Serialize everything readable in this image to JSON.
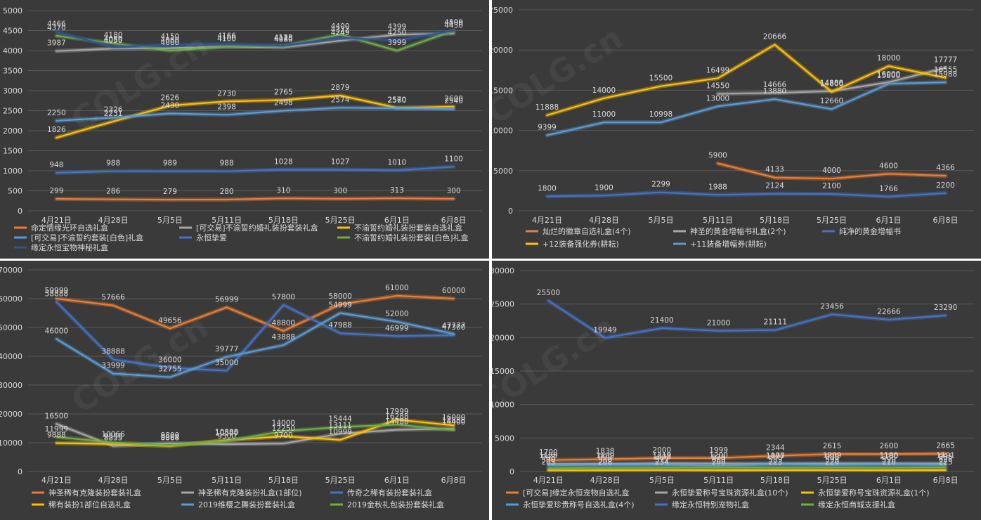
{
  "chart_data": [
    {
      "type": "line",
      "categories": [
        "4月21日",
        "4月28日",
        "5月5日",
        "5月11日",
        "5月18日",
        "5月25日",
        "6月1日",
        "6月8日"
      ],
      "ylim": [
        0,
        5000
      ],
      "yticks": [
        0,
        500,
        1000,
        1500,
        2000,
        2500,
        3000,
        3500,
        4000,
        4500,
        5000
      ],
      "grid": true,
      "legend_position": "bottom",
      "series": [
        {
          "name": "命定情缘光环自选礼盒",
          "color": "#ed7d31",
          "values": [
            299,
            286,
            279,
            280,
            310,
            300,
            313,
            300
          ]
        },
        {
          "name": "[可交易]不渝誓约婚礼装扮套装礼盒",
          "color": "#a5a5a5",
          "values": [
            3987,
            4050,
            4060,
            4100,
            4080,
            4249,
            4399,
            4430
          ]
        },
        {
          "name": "不渝誓约婚礼装扮套装自选礼盒",
          "color": "#ffc000",
          "values": [
            1826,
            2231,
            2626,
            2730,
            2765,
            2879,
            2570,
            2600
          ]
        },
        {
          "name": "[可交易]不渝誓约套装[白色]礼盒",
          "color": "#5b9bd5",
          "values": [
            2250,
            2326,
            2430,
            2398,
            2498,
            2574,
            2560,
            2540
          ]
        },
        {
          "name": "永恒挚爱",
          "color": "#4472c4",
          "values": [
            948,
            988,
            989,
            988,
            1028,
            1027,
            1010,
            1100
          ]
        },
        {
          "name": "不渝誓约婚礼装扮套装[白色]礼盒",
          "color": "#70ad47",
          "values": [
            4370,
            4180,
            4000,
            4100,
            4118,
            4400,
            3999,
            4498
          ]
        },
        {
          "name": "缘定永恒宝物神秘礼盒",
          "color": "#2f5597",
          "values": [
            4466,
            4089,
            4150,
            4166,
            4123,
            4322,
            4250,
            4500
          ]
        }
      ]
    },
    {
      "type": "line",
      "categories": [
        "4月21日",
        "4月28日",
        "5月5日",
        "5月11日",
        "5月18日",
        "5月25日",
        "6月1日",
        "6月8日"
      ],
      "ylim": [
        0,
        25000
      ],
      "yticks": [
        0,
        5000,
        10000,
        15000,
        20000,
        25000
      ],
      "grid": true,
      "legend_position": "bottom",
      "series": [
        {
          "name": "灿烂的徽章自选礼盒(4个)",
          "color": "#ed7d31",
          "values": [
            null,
            null,
            null,
            5900,
            4133,
            4000,
            4600,
            4366
          ]
        },
        {
          "name": "神圣的黄金增幅书礼盒(2个)",
          "color": "#a5a5a5",
          "values": [
            null,
            null,
            null,
            14550,
            14666,
            14888,
            16000,
            17777
          ]
        },
        {
          "name": "纯净的黄金增幅书",
          "color": "#4472c4",
          "values": [
            1800,
            1900,
            2299,
            1988,
            2124,
            2100,
            1766,
            2200
          ]
        },
        {
          "name": "+12装备强化券(耕耘)",
          "color": "#ffc000",
          "values": [
            11888,
            14000,
            15500,
            16499,
            20666,
            14800,
            18000,
            16555
          ]
        },
        {
          "name": "+11装备增幅券(耕耘)",
          "color": "#5b9bd5",
          "values": [
            9399,
            11000,
            10998,
            13000,
            13880,
            12660,
            15800,
            15988
          ]
        }
      ]
    },
    {
      "type": "line",
      "categories": [
        "4月21日",
        "4月28日",
        "5月5日",
        "5月11日",
        "5月18日",
        "5月25日",
        "6月1日",
        "6月8日"
      ],
      "ylim": [
        0,
        70000
      ],
      "yticks": [
        0,
        10000,
        20000,
        30000,
        40000,
        50000,
        60000,
        70000
      ],
      "grid": true,
      "legend_position": "bottom",
      "series": [
        {
          "name": "神圣稀有克隆装扮套装礼盒",
          "color": "#ed7d31",
          "values": [
            59999,
            57666,
            49656,
            56999,
            48800,
            58000,
            61000,
            60000
          ]
        },
        {
          "name": "神圣稀有克隆装扮礼盒(1部位)",
          "color": "#a5a5a5",
          "values": [
            16500,
            8855,
            9800,
            9500,
            9700,
            13111,
            14488,
            14888
          ]
        },
        {
          "name": "传奇之稀有装扮套装礼盒",
          "color": "#4472c4",
          "values": [
            58888,
            38888,
            36000,
            35000,
            57800,
            47988,
            46999,
            47300
          ]
        },
        {
          "name": "稀有装扮1部位自选礼盒",
          "color": "#ffc000",
          "values": [
            9888,
            9550,
            8888,
            10888,
            12250,
            10999,
            17999,
            16000
          ]
        },
        {
          "name": "2019维樱之舞装扮套装礼盒",
          "color": "#5b9bd5",
          "values": [
            46000,
            33999,
            32755,
            39777,
            43888,
            54999,
            52000,
            47777
          ]
        },
        {
          "name": "2019金秋礼包装扮套装礼盒",
          "color": "#70ad47",
          "values": [
            11999,
            10066,
            9064,
            10599,
            14000,
            15444,
            16288,
            14400
          ]
        }
      ]
    },
    {
      "type": "line",
      "categories": [
        "4月21日",
        "4月28日",
        "5月5日",
        "5月11日",
        "5月18日",
        "5月25日",
        "6月1日",
        "6月8日"
      ],
      "ylim": [
        0,
        30000
      ],
      "yticks": [
        0,
        5000,
        10000,
        15000,
        20000,
        25000,
        30000
      ],
      "grid": true,
      "legend_position": "bottom",
      "series": [
        {
          "name": "[可交易]缘定永恒宠物自选礼盒",
          "color": "#ed7d31",
          "values": [
            1700,
            1838,
            2000,
            1999,
            2344,
            2615,
            2600,
            2665
          ]
        },
        {
          "name": "永恒挚爱称号宝珠资源礼盒(10个)",
          "color": "#a5a5a5",
          "values": [
            1129,
            1139,
            1219,
            1200,
            1175,
            1209,
            1190,
            1191
          ]
        },
        {
          "name": "永恒挚爱称号宝珠资源礼盒(1个)",
          "color": "#ffc000",
          "values": [
            203,
            208,
            234,
            200,
            223,
            220,
            210,
            225
          ]
        },
        {
          "name": "永恒挚爱珍贵称号自选礼盒(4个)",
          "color": "#5b9bd5",
          "values": [
            948,
            999,
            1008,
            879,
            1097,
            999,
            1100,
            995
          ]
        },
        {
          "name": "缘定永恒特别宠物礼盒",
          "color": "#4472c4",
          "values": [
            25500,
            19949,
            21400,
            21000,
            21111,
            23456,
            22666,
            23290
          ]
        },
        {
          "name": "缘定永恒商城支援礼盒",
          "color": "#70ad47",
          "values": [
            500,
            550,
            577,
            600,
            589,
            599,
            590,
            628
          ]
        }
      ]
    }
  ]
}
